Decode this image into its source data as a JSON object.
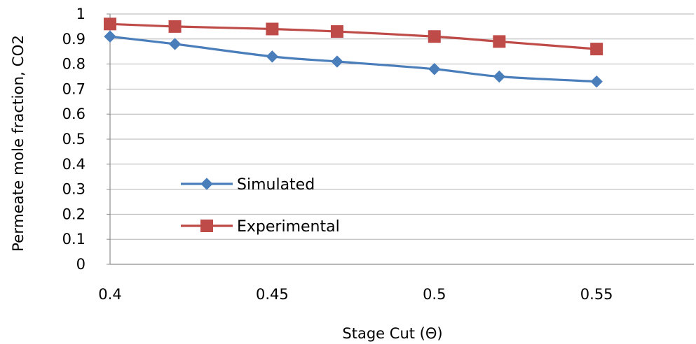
{
  "chart_data": {
    "type": "line",
    "title": "",
    "xlabel": "Stage Cut (Θ)",
    "ylabel": "Permeate mole fraction, CO2",
    "xlim": [
      0.4,
      0.58
    ],
    "ylim": [
      0,
      1
    ],
    "xticks": [
      0.4,
      0.45,
      0.5,
      0.55
    ],
    "xtick_labels": [
      "0.4",
      "0.45",
      "0.5",
      "0.55"
    ],
    "yticks": [
      0,
      0.1,
      0.2,
      0.3,
      0.4,
      0.5,
      0.6,
      0.7,
      0.8,
      0.9,
      1
    ],
    "ytick_labels": [
      "0",
      "0.1",
      "0.2",
      "0.3",
      "0.4",
      "0.5",
      "0.6",
      "0.7",
      "0.8",
      "0.9",
      "1"
    ],
    "grid": "horizontal",
    "legend": "center-left inside plot",
    "x": [
      0.4,
      0.42,
      0.45,
      0.47,
      0.5,
      0.52,
      0.55
    ],
    "series": [
      {
        "name": "Simulated",
        "color": "#4a7ebb",
        "marker": "diamond",
        "values": [
          0.91,
          0.88,
          0.83,
          0.81,
          0.78,
          0.75,
          0.73
        ]
      },
      {
        "name": "Experimental",
        "color": "#be4b48",
        "marker": "square",
        "values": [
          0.96,
          0.95,
          0.94,
          0.93,
          0.91,
          0.89,
          0.86
        ]
      }
    ]
  }
}
